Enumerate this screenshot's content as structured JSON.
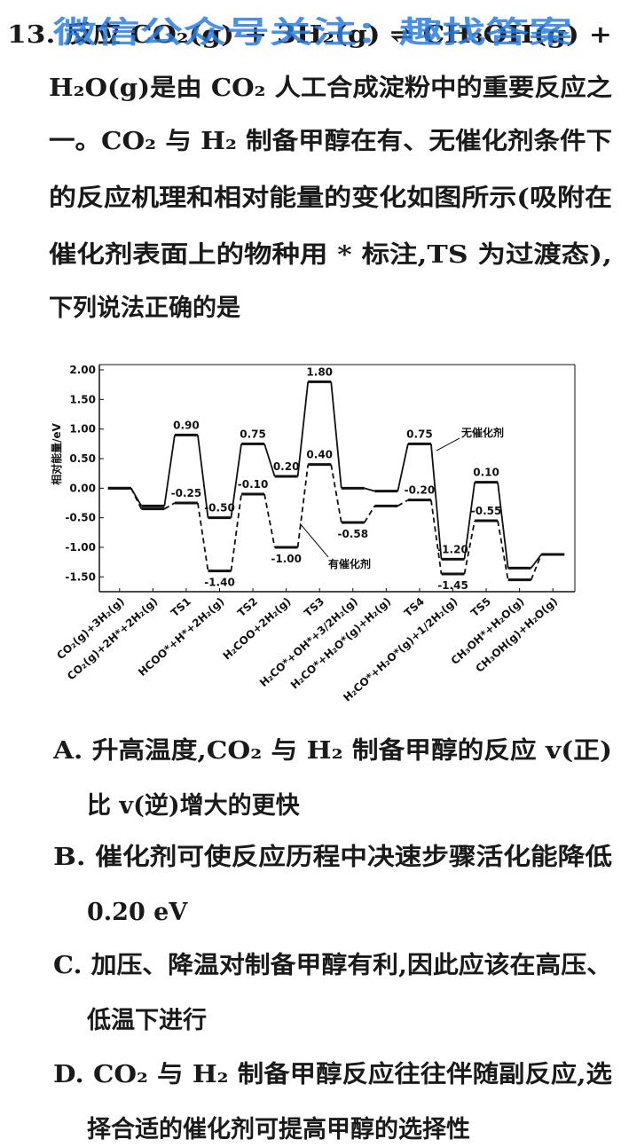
{
  "question": {
    "watermark": "微信公众号关注：趣找答案",
    "lines": [
      "13. 反应 CO₂(g) + 3H₂(g) ⇌ CH₃OH(g) +",
      "H₂O(g)是由 CO₂ 人工合成淀粉中的重要反应之",
      "一。CO₂ 与 H₂ 制备甲醇在有、无催化剂条件下",
      "的反应机理和相对能量的变化如图所示(吸附在",
      "催化剂表面上的物种用 * 标注,TS 为过渡态),",
      "下列说法正确的是"
    ]
  },
  "chart_data": {
    "type": "energy-profile",
    "y_label": "相对能量/eV",
    "categories": [
      "CO₂(g)+3H₂(g)",
      "CO₂(g)+2H*+2H₂(g)",
      "TS1",
      "HCOO*+H*+2H₂(g)",
      "TS2",
      "H₂COO+2H₂(g)",
      "TS3",
      "H₂CO*+OH*+3/2H₂(g)",
      "H₂CO*+H₂O*(g)+H₂(g)",
      "TS4",
      "H₂CO*+H₂O*(g)+1/2H₂(g)",
      "TS5",
      "CH₃OH*+H₂O(g)",
      "CH₃OH(g)+H₂O(g)"
    ],
    "series": [
      {
        "name": "无催化剂",
        "color": "#111111",
        "dash": false,
        "values": [
          0.0,
          -0.3,
          0.9,
          -0.5,
          0.75,
          0.2,
          1.8,
          0.0,
          -0.05,
          0.75,
          -1.2,
          0.1,
          -1.35,
          -1.12
        ],
        "value_labels": [
          null,
          null,
          "0.90",
          "-0.50",
          "0.75",
          "0.20",
          "1.80",
          null,
          null,
          "0.75",
          "-1.20",
          "0.10",
          null,
          null
        ]
      },
      {
        "name": "有催化剂",
        "color": "#111111",
        "dash": true,
        "values": [
          0.0,
          -0.35,
          -0.25,
          -1.4,
          -0.1,
          -1.0,
          0.4,
          -0.58,
          -0.3,
          -0.2,
          -1.45,
          -0.55,
          -1.55,
          -1.12
        ],
        "value_labels": [
          null,
          null,
          "-0.25",
          "-1.40",
          "-0.10",
          "-1.00",
          "0.40",
          "-0.58",
          null,
          "-0.20",
          "-1.45",
          "-0.55",
          null,
          null
        ]
      }
    ],
    "ylim": [
      -1.75,
      2.0
    ],
    "yticks": [
      {
        "value": 2,
        "label": "2.00"
      },
      {
        "value": 1.5,
        "label": "1.50"
      },
      {
        "value": 1,
        "label": "1.00"
      },
      {
        "value": 0.5,
        "label": "0.50"
      },
      {
        "value": 0,
        "label": "0.00"
      },
      {
        "value": -0.5,
        "label": "-0.50"
      },
      {
        "value": -1,
        "label": "-1.00"
      },
      {
        "value": -1.5,
        "label": "-1.50"
      }
    ]
  },
  "options": [
    {
      "lines": [
        "A. 升高温度,CO₂ 与 H₂ 制备甲醇的反应 v(正)",
        "比 v(逆)增大的更快"
      ]
    },
    {
      "lines": [
        "B. 催化剂可使反应历程中决速步骤活化能降低",
        "0.20 eV"
      ]
    },
    {
      "lines": [
        "C. 加压、降温对制备甲醇有利,因此应该在高压、",
        "低温下进行"
      ]
    },
    {
      "lines": [
        "D. CO₂ 与 H₂ 制备甲醇反应往往伴随副反应,选",
        "择合适的催化剂可提高甲醇的选择性"
      ]
    }
  ]
}
